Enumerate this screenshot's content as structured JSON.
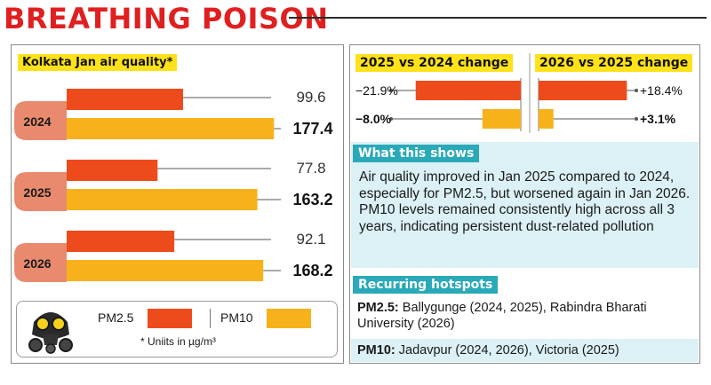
{
  "headline": "BREATHING POISON",
  "chart_data": {
    "type": "bar",
    "title": "Kolkata Jan air quality*",
    "categories": [
      "2024",
      "2025",
      "2026"
    ],
    "series": [
      {
        "name": "PM2.5",
        "values": [
          99.6,
          77.8,
          92.1
        ],
        "labels": [
          "99.6",
          "77.8",
          "92.1"
        ],
        "color": "#ee4b1d"
      },
      {
        "name": "PM10",
        "values": [
          177.4,
          163.2,
          168.2
        ],
        "labels": [
          "177.4",
          "163.2",
          "168.2"
        ],
        "color": "#f7b21b"
      }
    ],
    "footnote": "* Uniits in µg/m³"
  },
  "change_chart": {
    "type": "bar",
    "panels": [
      {
        "title": "2025 vs 2024 change",
        "pm25": -21.9,
        "pm10": -8.0,
        "pm25_label": "−21.9%",
        "pm10_label": "−8.0%"
      },
      {
        "title": "2026 vs 2025 change",
        "pm25": 18.4,
        "pm10": 3.1,
        "pm25_label": "+18.4%",
        "pm10_label": "+3.1%"
      }
    ]
  },
  "what_this_shows": {
    "title": "What this shows",
    "text": "Air quality improved in Jan 2025 compared to 2024, especially for PM2.5, but worsened again in Jan 2026. PM10 levels remained consistently high across all 3 years, indicating persistent dust-related pollution"
  },
  "hotspots": {
    "title": "Recurring hotspots",
    "pm25_label": "PM2.5:",
    "pm25_text": "Ballygunge (2024, 2025), Rabindra Bharati University (2026)",
    "pm10_label": "PM10:",
    "pm10_text": "Jadavpur (2024, 2026), Victoria (2025)"
  },
  "legend": {
    "pm25": "PM2.5",
    "pm10": "PM10"
  },
  "colors": {
    "title_red": "#e02020",
    "pm25": "#ee4b1d",
    "pm10": "#f7b21b",
    "highlight": "#ffe21a",
    "teal": "#2aa9b8",
    "note_bg": "#dcf1f5",
    "year_block": "#e98a6e"
  }
}
